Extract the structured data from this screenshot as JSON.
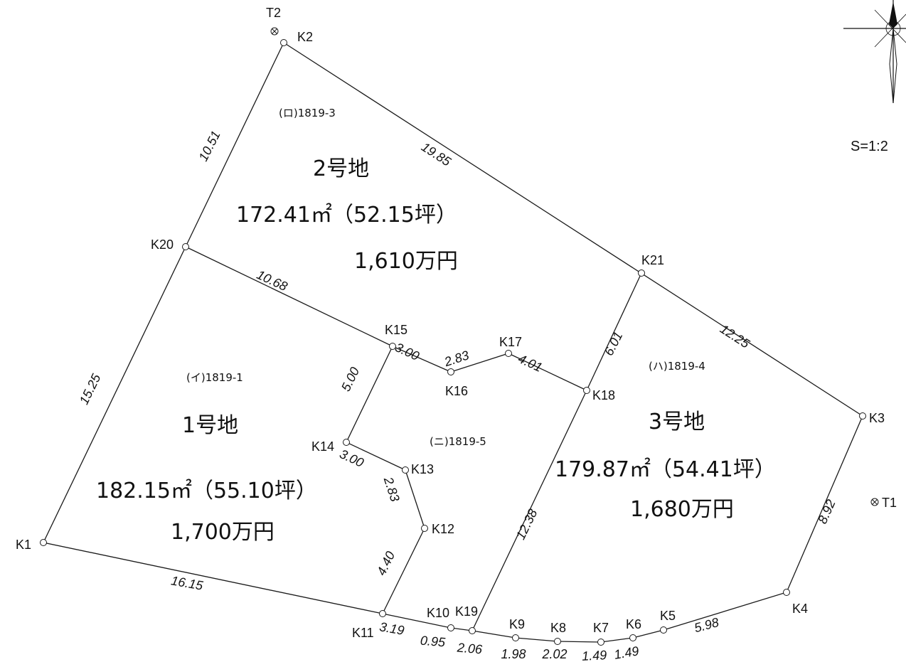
{
  "scale": "S=1:2",
  "points": [
    {
      "id": "T2",
      "label": "T2",
      "symbol": "benchmark"
    },
    {
      "id": "K2",
      "label": "K2"
    },
    {
      "id": "K20",
      "label": "K20"
    },
    {
      "id": "K21",
      "label": "K21"
    },
    {
      "id": "K15",
      "label": "K15"
    },
    {
      "id": "K16",
      "label": "K16"
    },
    {
      "id": "K17",
      "label": "K17"
    },
    {
      "id": "K18",
      "label": "K18"
    },
    {
      "id": "K14",
      "label": "K14"
    },
    {
      "id": "K13",
      "label": "K13"
    },
    {
      "id": "K12",
      "label": "K12"
    },
    {
      "id": "K3",
      "label": "K3"
    },
    {
      "id": "T1",
      "label": "T1",
      "symbol": "benchmark"
    },
    {
      "id": "K1",
      "label": "K1"
    },
    {
      "id": "K4",
      "label": "K4"
    },
    {
      "id": "K11",
      "label": "K11"
    },
    {
      "id": "K10",
      "label": "K10"
    },
    {
      "id": "K19",
      "label": "K19"
    },
    {
      "id": "K9",
      "label": "K9"
    },
    {
      "id": "K8",
      "label": "K8"
    },
    {
      "id": "K7",
      "label": "K7"
    },
    {
      "id": "K6",
      "label": "K6"
    },
    {
      "id": "K5",
      "label": "K5"
    }
  ],
  "dimensions": [
    {
      "from": "K2",
      "to": "K20",
      "value": "10.51"
    },
    {
      "from": "K2",
      "to": "K21",
      "value": "19.85"
    },
    {
      "from": "K20",
      "to": "K15",
      "value": "10.68"
    },
    {
      "from": "K21",
      "to": "K3",
      "value": "12.25"
    },
    {
      "from": "K21",
      "to": "K18",
      "value": "6.01"
    },
    {
      "from": "K20",
      "to": "K1",
      "value": "15.25"
    },
    {
      "from": "K15",
      "to": "K16",
      "value": "3.00"
    },
    {
      "from": "K16",
      "to": "K17",
      "value": "2.83"
    },
    {
      "from": "K17",
      "to": "K18",
      "value": "4.01"
    },
    {
      "from": "K15",
      "to": "K14",
      "value": "5.00"
    },
    {
      "from": "K14",
      "to": "K13",
      "value": "3.00"
    },
    {
      "from": "K13",
      "to": "K12",
      "value": "2.83"
    },
    {
      "from": "K12",
      "to": "K11",
      "value": "4.40"
    },
    {
      "from": "K18",
      "to": "K19",
      "value": "12.38"
    },
    {
      "from": "K3",
      "to": "K4",
      "value": "8.92"
    },
    {
      "from": "K1",
      "to": "K11",
      "value": "16.15"
    },
    {
      "from": "K11",
      "to": "K10",
      "value": "3.19"
    },
    {
      "from": "K10",
      "to": "K19",
      "value": "0.95"
    },
    {
      "from": "K19",
      "to": "K9",
      "value": "2.06"
    },
    {
      "from": "K9",
      "to": "K8",
      "value": "1.98"
    },
    {
      "from": "K8",
      "to": "K7",
      "value": "2.02"
    },
    {
      "from": "K7",
      "to": "K6",
      "value": "1.49"
    },
    {
      "from": "K6",
      "to": "K5",
      "value": "1.49"
    },
    {
      "from": "K5",
      "to": "K4",
      "value": "5.98"
    }
  ],
  "lots": [
    {
      "parcel": "(ロ)1819-3",
      "name": "2号地",
      "area": "172.41㎡（52.15坪）",
      "price": "1,610万円"
    },
    {
      "parcel": "(イ)1819-1",
      "name": "1号地",
      "area": "182.15㎡（55.10坪）",
      "price": "1,700万円"
    },
    {
      "parcel": "(ハ)1819-4",
      "name": "3号地",
      "area": "179.87㎡（54.41坪）",
      "price": "1,680万円"
    },
    {
      "parcel": "(ニ)1819-5",
      "name": "",
      "area": "",
      "price": ""
    }
  ]
}
